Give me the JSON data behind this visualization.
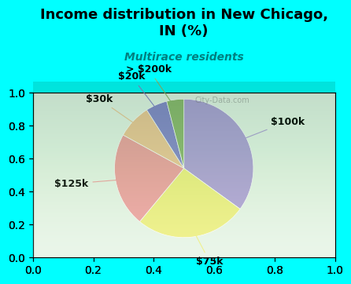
{
  "title": "Income distribution in New Chicago,\nIN (%)",
  "subtitle": "Multirace residents",
  "title_color": "#000000",
  "subtitle_color": "#008080",
  "background_top": "#00ffff",
  "background_chart": "#e8f5e8",
  "labels": [
    "$100k",
    "$75k",
    "$125k",
    "$30k",
    "$20k",
    "> $200k"
  ],
  "values": [
    35,
    26,
    22,
    8,
    5,
    4
  ],
  "colors": [
    "#b0a0d8",
    "#f0f080",
    "#f0a0a0",
    "#f0c898",
    "#8888cc",
    "#90b870"
  ],
  "watermark": "City-Data.com",
  "label_fontsize": 9,
  "title_fontsize": 13
}
